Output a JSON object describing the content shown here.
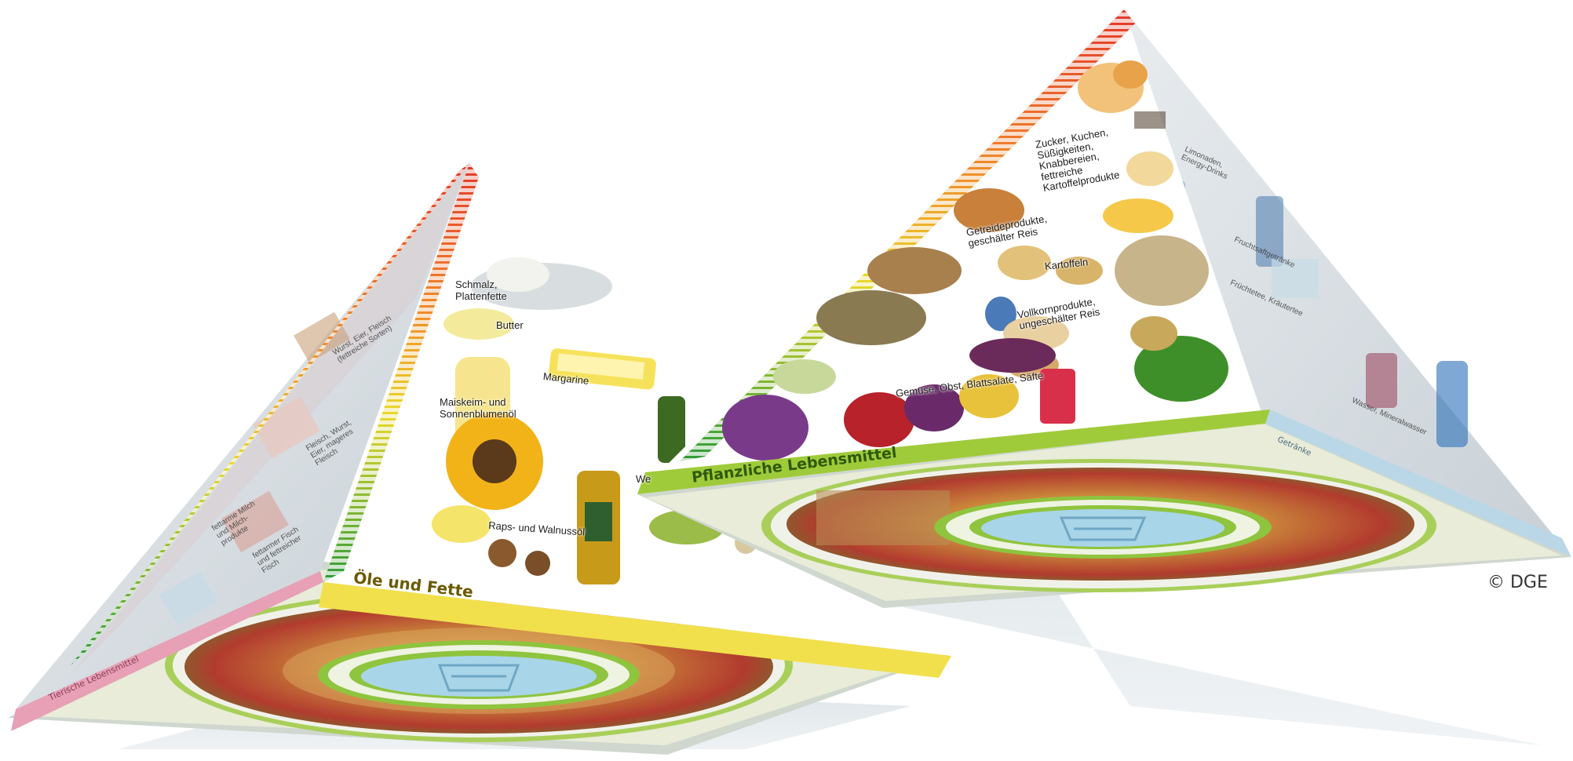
{
  "left_pyramid": {
    "face_labels": {
      "oils_fats": "Öle und Fette",
      "animal": "Tierische Lebensmittel"
    },
    "food_labels": {
      "lard": "Schmalz,\nPlattenfette",
      "butter": "Butter",
      "margarine": "Margarine",
      "corn_sunflower": "Maiskeim- und\nSonnenblumenöl",
      "rapeseed_walnut": "Raps- und Walnussöl",
      "olive_partial": "We"
    },
    "faded_labels": {
      "a": "Wurst, Eier, Fleisch\n(fettreiche Sorten)",
      "b": "Fleisch, Wurst,\nEier, mageres\nFleisch",
      "c": "fettarme Milch\nund Milch-\nprodukte",
      "d": "fettarmer Fisch\nund fettreicher\nFisch"
    }
  },
  "right_pyramid": {
    "face_labels": {
      "plant": "Pflanzliche Lebensmittel",
      "drinks": "Getränke"
    },
    "food_labels": {
      "sugar": "Zucker, Kuchen,\nSüßigkeiten,\nKnabbereien,\nfettreiche\nKartoffelprodukte",
      "grain": "Getreideprodukte,\ngeschälter Reis",
      "potatoes": "Kartoffeln",
      "wholegrain": "Vollkornprodukte,\nungeschälter Reis",
      "vegetables": "Gemüse, Obst, Blattsalate, Säfte"
    },
    "faded_labels": {
      "a": "Limonaden,\nEnergy-Drinks",
      "b": "Fruchtsaftgetränke",
      "c": "Früchtetee, Kräutertee",
      "d": "Wasser, Mineralwasser"
    }
  },
  "copyright": "© DGE",
  "colors": {
    "oils_band": "#f1e04c",
    "animal_band": "#e7a0b5",
    "plant_band": "#9fcb3a",
    "drinks_band": "#b9d7e6",
    "scale_top": "#e2382a",
    "scale_bottom": "#2e9b3a",
    "disc_ring": "#8fc43e",
    "disc_center": "#a9d5e8"
  },
  "icons": {
    "left_disc": "food-circle-plate",
    "right_disc": "food-circle-plate",
    "center": "drinking-glass"
  }
}
